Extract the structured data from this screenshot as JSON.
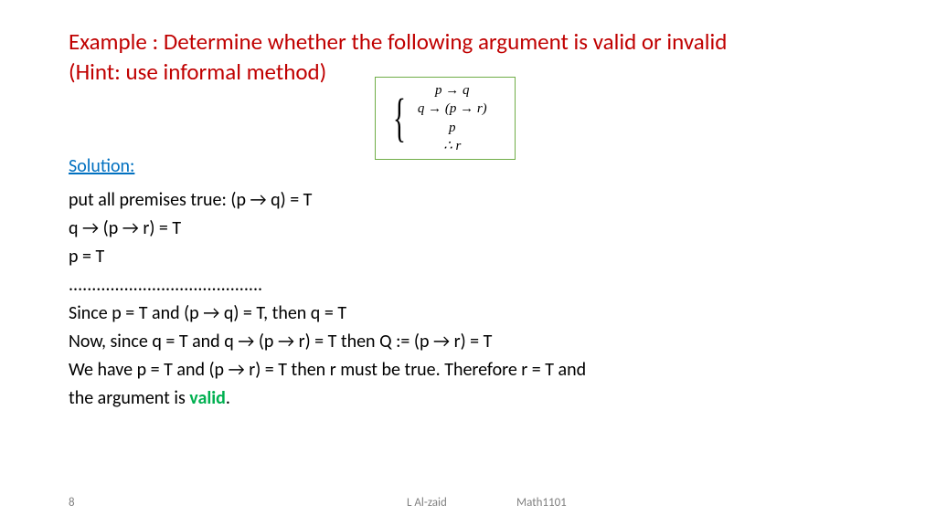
{
  "title_line1": "Example : Determine whether the following argument is valid or invalid",
  "title_line2": "(Hint: use informal method)",
  "argument": {
    "line1": "p → q",
    "line2": "q → (p → r)",
    "line3": "p",
    "line4": "∴ r"
  },
  "solution_heading": "Solution:",
  "body": {
    "l1": "put all premises true: (p → q) = T",
    "l2": "q → (p → r) = T",
    "l3": "p = T",
    "l4": "..........................................",
    "l5": "Since p = T and (p → q) = T, then q = T",
    "l6": "Now, since q = T and q → (p → r) = T then Q := (p → r) = T",
    "l7": "We have p = T and (p → r) = T then r must be true. Therefore r = T and",
    "l8_prefix": "the argument is ",
    "l8_valid": "valid",
    "l8_suffix": "."
  },
  "footer": {
    "page": "8",
    "author": "L Al-zaid",
    "course": "Math1101"
  },
  "colors": {
    "title": "#c00000",
    "solution": "#0070c0",
    "body": "#000000",
    "valid": "#00b050",
    "footer": "#808080",
    "box_border": "#70ad47",
    "background": "#ffffff"
  }
}
